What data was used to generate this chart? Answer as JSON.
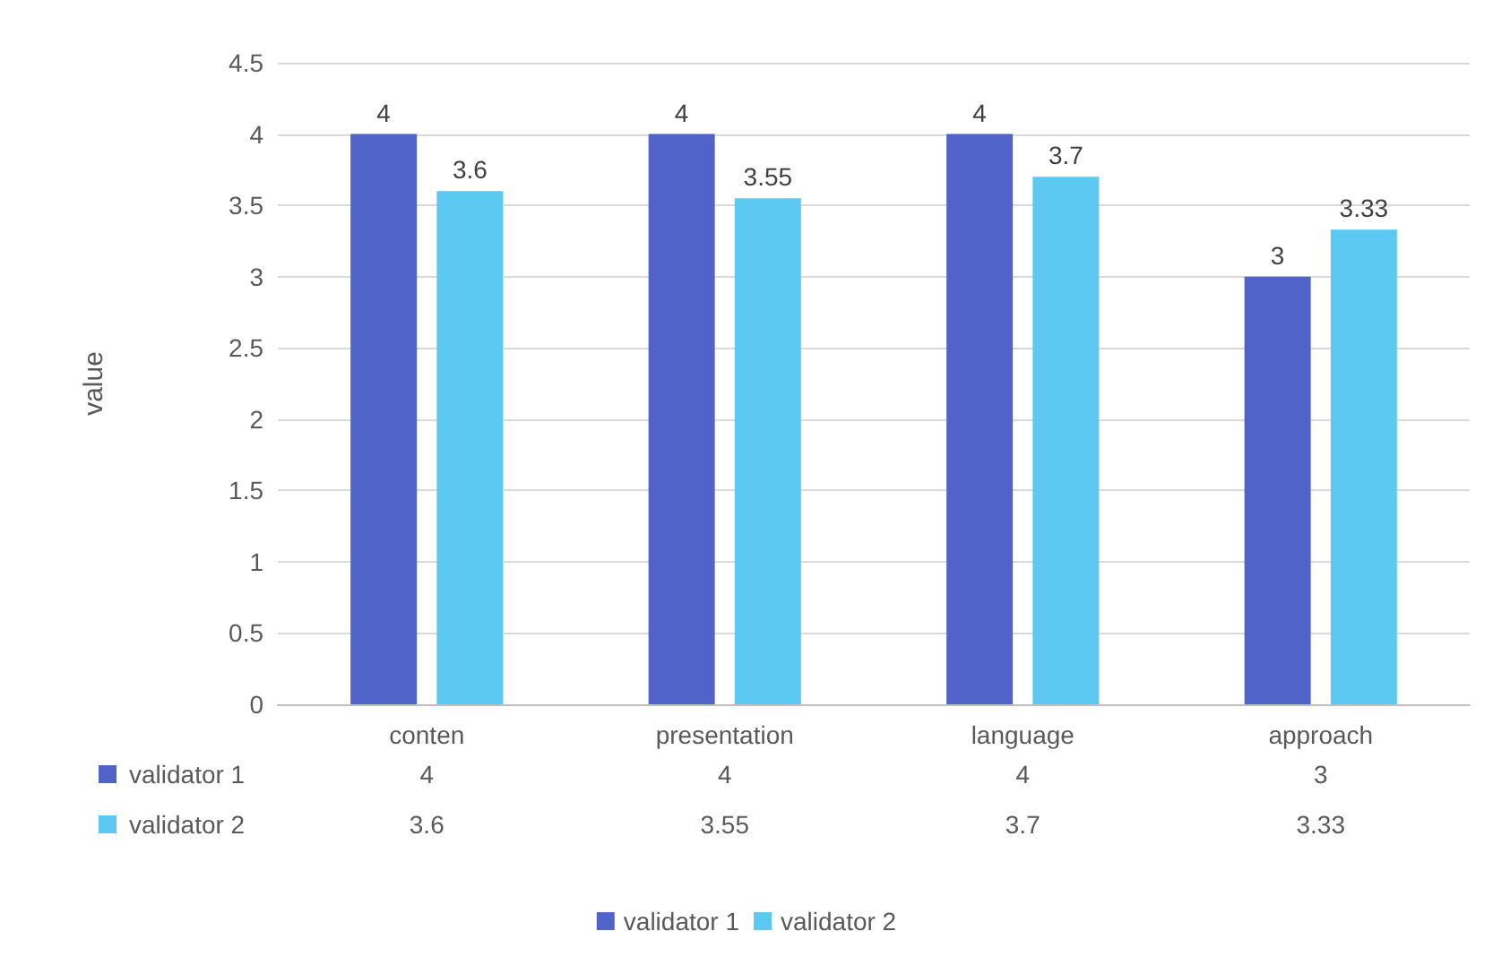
{
  "chart_data": {
    "type": "bar",
    "ylabel": "value",
    "categories": [
      "conten",
      "presentation",
      "language",
      "approach"
    ],
    "series": [
      {
        "name": "validator 1",
        "color": "#4f63c9",
        "values": [
          4,
          4,
          4,
          3
        ]
      },
      {
        "name": "validator 2",
        "color": "#5bc9f1",
        "values": [
          3.6,
          3.55,
          3.7,
          3.33
        ]
      }
    ],
    "annotations": [
      "4",
      "4",
      "4",
      "3",
      "3.6",
      "3.55",
      "3.7",
      "3.33"
    ],
    "ylim": [
      0,
      4.5
    ],
    "yticks": [
      0,
      0.5,
      1,
      1.5,
      2,
      2.5,
      3,
      3.5,
      4,
      4.5
    ],
    "grid": "y",
    "legend": "bottom",
    "data_labels": true
  }
}
